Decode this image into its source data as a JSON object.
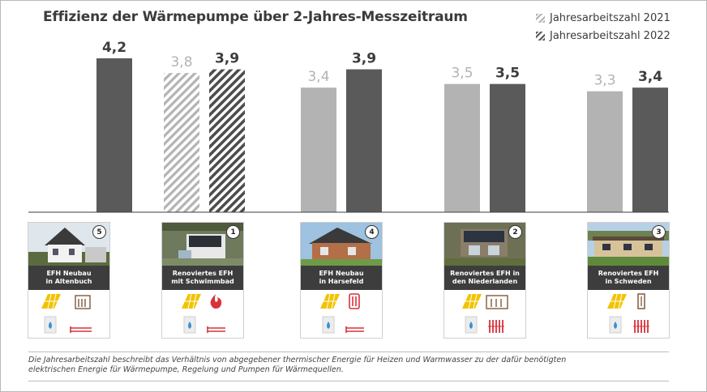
{
  "title": "Effizienz der Wärmepumpe  über 2-Jahres-Messzeitraum",
  "legend": [
    {
      "label": "Jahresarbeitszahl 2021",
      "color": "#b3b3b3",
      "hatched": true
    },
    {
      "label": "Jahresarbeitszahl 2022",
      "color": "#5a5a5a",
      "hatched": true
    }
  ],
  "colors": {
    "light": "#b3b3b3",
    "dark": "#5a5a5a",
    "label_light": "#b3b3b3",
    "label_dark": "#3d3d3d"
  },
  "chart_data": {
    "type": "bar",
    "categories": [
      "EFH Neubau in Altenbuch",
      "Renoviertes EFH mit Schwimmbad",
      "EFH Neubau in Harsefeld",
      "Renoviertes EFH in den Niederlanden",
      "Renoviertes EFH in Schweden"
    ],
    "series": [
      {
        "name": "Jahresarbeitszahl 2021",
        "values": [
          null,
          3.8,
          3.4,
          3.5,
          3.3
        ],
        "labels": [
          "",
          "3,8",
          "3,4",
          "3,5",
          "3,3"
        ]
      },
      {
        "name": "Jahresarbeitszahl 2022",
        "values": [
          4.2,
          3.9,
          3.9,
          3.5,
          3.4
        ],
        "labels": [
          "4,2",
          "3,9",
          "3,9",
          "3,5",
          "3,4"
        ]
      }
    ],
    "hatched_categories": [
      1
    ],
    "ylim": [
      0,
      4.2
    ],
    "grid": false
  },
  "houses": [
    {
      "rank": "5",
      "line1": "EFH Neubau",
      "line2": "in Altenbuch",
      "icons": [
        "solar-panel-icon",
        "wood-stove-icon",
        "water-tank-icon",
        "floor-heating-icon"
      ]
    },
    {
      "rank": "1",
      "line1": "Renoviertes EFH",
      "line2": "mit Schwimmbad",
      "icons": [
        "solar-panel-icon",
        "flame-icon",
        "water-tank-icon",
        "floor-heating-icon"
      ]
    },
    {
      "rank": "4",
      "line1": "EFH Neubau",
      "line2": "in Harsefeld",
      "icons": [
        "solar-panel-icon",
        "infrared-heater-icon",
        "water-tank-icon",
        "floor-heating-icon"
      ]
    },
    {
      "rank": "2",
      "line1": "Renoviertes EFH in",
      "line2": "den Niederlanden",
      "icons": [
        "solar-panel-icon",
        "wood-stove-icon",
        "water-tank-icon",
        "radiator-icon"
      ]
    },
    {
      "rank": "3",
      "line1": "Renoviertes EFH",
      "line2": "in Schweden",
      "icons": [
        "solar-panel-icon",
        "chimney-icon",
        "water-tank-icon",
        "radiator-icon"
      ]
    }
  ],
  "footnote": {
    "line1": "Die Jahresarbeitszahl beschreibt das Verhältnis von abgegebener thermischer Energie für Heizen und Warmwasser zu der dafür benötigten",
    "line2": "elektrischen Energie für Wärmepumpe, Regelung und Pumpen für Wärmequellen."
  }
}
